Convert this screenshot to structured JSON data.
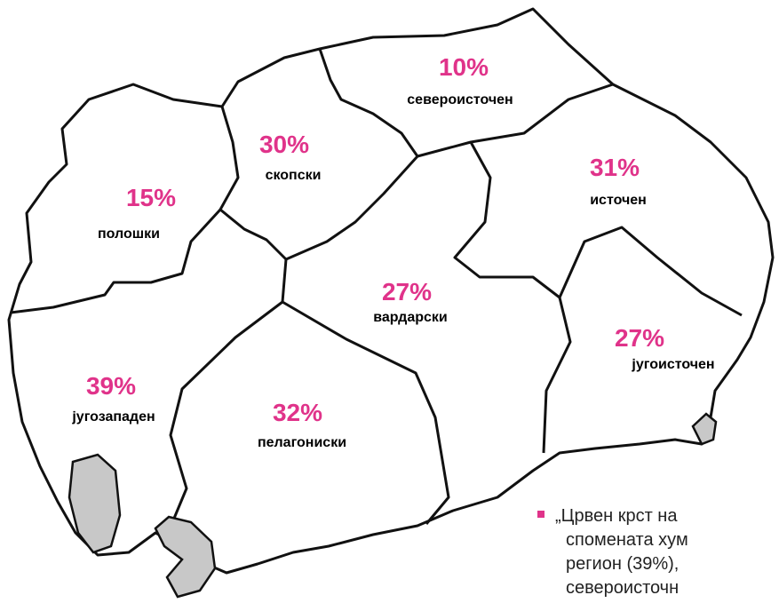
{
  "regions": [
    {
      "percent": "10%",
      "name": "североисточен"
    },
    {
      "percent": "30%",
      "name": "скопски"
    },
    {
      "percent": "15%",
      "name": "полошки"
    },
    {
      "percent": "31%",
      "name": "источен"
    },
    {
      "percent": "27%",
      "name": "вардарски"
    },
    {
      "percent": "27%",
      "name": "југоисточен"
    },
    {
      "percent": "39%",
      "name": "југозападен"
    },
    {
      "percent": "32%",
      "name": "пелагониски"
    }
  ],
  "note": {
    "lines": [
      "„Црвен крст на",
      "спомената хум",
      "регион (39%), ",
      "североисточн"
    ]
  }
}
